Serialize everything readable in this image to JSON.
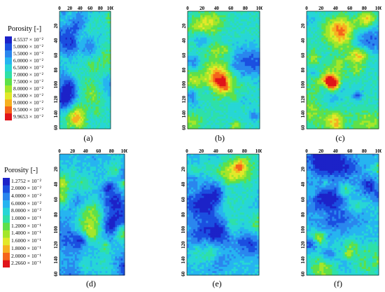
{
  "legends": [
    {
      "title": "Porosity [-]",
      "labels": [
        "4.5537 × 10⁻²",
        "5.0000 × 10⁻²",
        "5.5000 × 10⁻²",
        "6.0000 × 10⁻²",
        "6.5000 × 10⁻²",
        "7.0000 × 10⁻²",
        "7.5000 × 10⁻²",
        "8.0000 × 10⁻²",
        "8.5000 × 10⁻²",
        "9.0000 × 10⁻²",
        "9.5000 × 10⁻²",
        "9.9653 × 10⁻²"
      ]
    },
    {
      "title": "Porosity [-]",
      "labels": [
        "1.2752 × 10⁻²",
        "2.0000 × 10⁻²",
        "4.0000 × 10⁻²",
        "6.0000 × 10⁻²",
        "8.0000 × 10⁻²",
        "1.0000 × 10⁻¹",
        "1.2000 × 10⁻¹",
        "1.4000 × 10⁻¹",
        "1.6000 × 10⁻¹",
        "1.8000 × 10⁻¹",
        "2.0000 × 10⁻¹",
        "2.2660 × 10⁻¹"
      ]
    }
  ],
  "legend_colors": [
    "#1c22c8",
    "#1b4fe0",
    "#2a86ee",
    "#26b4f0",
    "#27d6d6",
    "#2ee0a8",
    "#5ee04a",
    "#a4e62a",
    "#e2e82a",
    "#f6b021",
    "#f5641b",
    "#e0141a"
  ],
  "axis": {
    "x_ticks": [
      "0",
      "20",
      "40",
      "60",
      "80",
      "100"
    ],
    "y_ticks": [
      "20",
      "40",
      "60",
      "80",
      "100",
      "120",
      "140",
      "160"
    ]
  },
  "panels": [
    {
      "caption": "(a)",
      "seed": 11,
      "theme": "high"
    },
    {
      "caption": "(b)",
      "seed": 23,
      "theme": "high"
    },
    {
      "caption": "(c)",
      "seed": 37,
      "theme": "high"
    },
    {
      "caption": "(d)",
      "seed": 41,
      "theme": "low"
    },
    {
      "caption": "(e)",
      "seed": 53,
      "theme": "low"
    },
    {
      "caption": "(f)",
      "seed": 67,
      "theme": "low"
    }
  ]
}
